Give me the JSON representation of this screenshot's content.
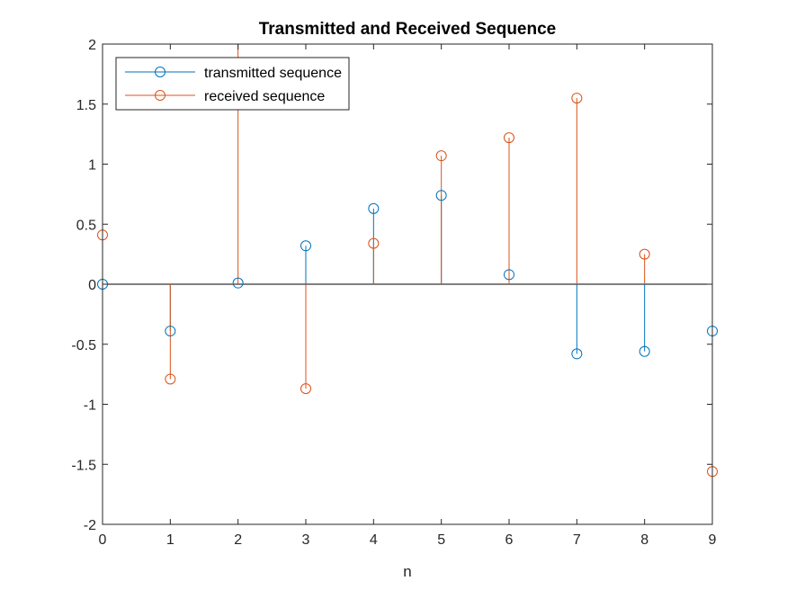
{
  "chart_data": {
    "type": "stem",
    "title": "Transmitted and Received Sequence",
    "xlabel": "n",
    "ylabel": "",
    "xlim": [
      0,
      9
    ],
    "ylim": [
      -2,
      2
    ],
    "xticks": [
      "0",
      "1",
      "2",
      "3",
      "4",
      "5",
      "6",
      "7",
      "8",
      "9"
    ],
    "yticks": [
      "-2",
      "-1.5",
      "-1",
      "-0.5",
      "0",
      "0.5",
      "1",
      "1.5",
      "2"
    ],
    "x": [
      0,
      1,
      2,
      3,
      4,
      5,
      6,
      7,
      8,
      9
    ],
    "series": [
      {
        "name": "transmitted sequence",
        "color": "#0072BD",
        "values": [
          0,
          -0.39,
          0.01,
          0.32,
          0.63,
          0.74,
          0.08,
          -0.58,
          -0.56,
          -0.39
        ]
      },
      {
        "name": "received sequence",
        "color": "#D95319",
        "values": [
          0.41,
          -0.79,
          2.3,
          -0.87,
          0.34,
          1.07,
          1.22,
          1.55,
          0.25,
          -1.56
        ]
      }
    ],
    "legend_position": "top-left",
    "grid": false
  }
}
